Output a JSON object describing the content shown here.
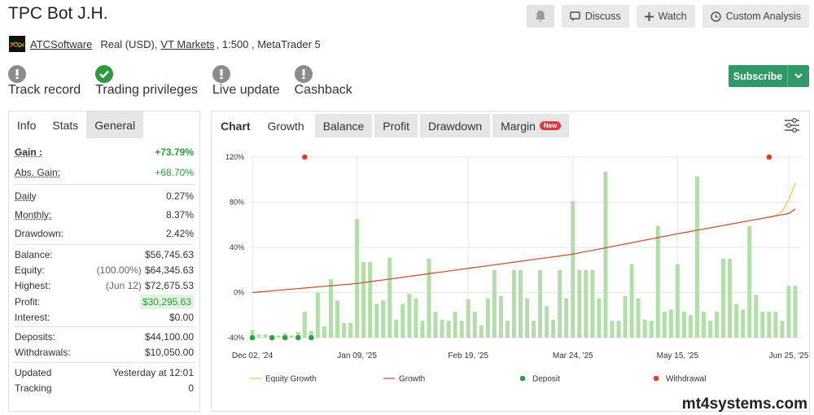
{
  "header": {
    "title": "TPC Bot J.H.",
    "buttons": [
      "Discuss",
      "Watch",
      "Custom Analysis"
    ]
  },
  "account": {
    "author": "ATCSoftware",
    "prefix": "Real (USD),",
    "broker": "VT Markets",
    "suffix": ", 1:500 , MetaTrader 5"
  },
  "badges": [
    {
      "label": "Track record",
      "ok": false
    },
    {
      "label": "Trading privileges",
      "ok": true
    },
    {
      "label": "Live update",
      "ok": false
    },
    {
      "label": "Cashback",
      "ok": false
    }
  ],
  "subscribe": "Subscribe",
  "stats": {
    "tabs": [
      "Info",
      "Stats",
      "General"
    ],
    "groups": [
      [
        {
          "label": "Gain :",
          "value": "+73.79%",
          "underline": true,
          "bold": true,
          "color": "#2e9a3e"
        },
        {
          "label": "Abs. Gain:",
          "value": "+68.70%",
          "underline": true,
          "color": "#2e9a3e"
        }
      ],
      [
        {
          "label": "Daily",
          "value": "0.27%",
          "underline": true
        },
        {
          "label": "Monthly:",
          "value": "8.37%",
          "underline": true
        },
        {
          "label": "Drawdown:",
          "value": "2.42%"
        }
      ],
      [
        {
          "label": "Balance:",
          "value": "$56,745.63"
        },
        {
          "label": "Equity:",
          "note": "(100.00%)",
          "value": "$64,345.63"
        },
        {
          "label": "Highest:",
          "note": "(Jun 12)",
          "value": "$72,675.53"
        },
        {
          "label": "Profit:",
          "value": "$30,295.63",
          "color": "#2e9a3e",
          "highlight": "#e2f3e2"
        },
        {
          "label": "Interest:",
          "value": "$0.00"
        }
      ],
      [
        {
          "label": "Deposits:",
          "value": "$44,100.00"
        },
        {
          "label": "Withdrawals:",
          "value": "$10,050.00"
        }
      ],
      [
        {
          "label": "Updated",
          "value": "Yesterday at 12:01"
        },
        {
          "label": "Tracking",
          "value": "0"
        }
      ]
    ]
  },
  "chart_tabs": {
    "tabs": [
      "Chart",
      "Growth",
      "Balance",
      "Profit",
      "Drawdown",
      "Margin"
    ],
    "badge": "New"
  },
  "watermark": "mt4systems.com",
  "chart_data": {
    "type": "combo",
    "ylim": [
      -40,
      120
    ],
    "yticks": [
      {
        "value": -40,
        "label": "-40%"
      },
      {
        "value": 0,
        "label": "0%"
      },
      {
        "value": 40,
        "label": "40%"
      },
      {
        "value": 80,
        "label": "80%"
      },
      {
        "value": 120,
        "label": "120%"
      }
    ],
    "grid": true,
    "categories": [
      "Dec 02, '24",
      null,
      null,
      null,
      null,
      null,
      null,
      null,
      null,
      null,
      null,
      null,
      null,
      null,
      null,
      null,
      "Jan 09, '25",
      null,
      null,
      null,
      null,
      null,
      null,
      null,
      null,
      null,
      null,
      null,
      null,
      null,
      null,
      null,
      null,
      "Feb 19, '25",
      null,
      null,
      null,
      null,
      null,
      null,
      null,
      null,
      null,
      null,
      null,
      null,
      null,
      null,
      null,
      "Mar 24, '25",
      null,
      null,
      null,
      null,
      null,
      null,
      null,
      null,
      null,
      null,
      null,
      null,
      null,
      null,
      null,
      "May 15, '25",
      null,
      null,
      null,
      null,
      null,
      null,
      null,
      null,
      null,
      null,
      null,
      null,
      null,
      null,
      null,
      null,
      "Jun 25, '25",
      null
    ],
    "bars": {
      "color": "#b3deab",
      "values": [
        -33,
        -37,
        -37,
        -38,
        -38,
        -36,
        -38,
        -35,
        -17,
        -34,
        0,
        -30,
        12,
        -7,
        -27,
        -27,
        65,
        27,
        27,
        -10,
        -7,
        31,
        -24,
        -10,
        -1,
        -5,
        -25,
        30,
        -17,
        -24,
        -25,
        -17,
        -25,
        -6,
        -17,
        -29,
        -5,
        20,
        -3,
        -25,
        20,
        20,
        -5,
        -25,
        20,
        -12,
        -24,
        20,
        -5,
        81,
        20,
        20,
        20,
        -5,
        107,
        -25,
        -25,
        -3,
        25,
        -5,
        -24,
        -25,
        59,
        -17,
        -15,
        25,
        -17,
        -20,
        103,
        -17,
        -25,
        -17,
        30,
        30,
        -10,
        -15,
        59,
        -2,
        -17,
        -17,
        -17,
        -25,
        6,
        6
      ]
    },
    "series": [
      {
        "name": "Equity Growth",
        "kind": "line",
        "color": "#e8c84a",
        "values": [
          null,
          null,
          null,
          null,
          null,
          null,
          null,
          null,
          null,
          null,
          null,
          null,
          null,
          null,
          null,
          null,
          null,
          null,
          null,
          null,
          null,
          null,
          null,
          null,
          null,
          null,
          null,
          null,
          null,
          null,
          null,
          null,
          null,
          null,
          null,
          null,
          null,
          null,
          null,
          null,
          null,
          null,
          null,
          null,
          null,
          null,
          null,
          null,
          null,
          null,
          null,
          null,
          null,
          null,
          null,
          null,
          null,
          null,
          null,
          null,
          null,
          null,
          null,
          null,
          null,
          null,
          null,
          null,
          null,
          null,
          null,
          null,
          null,
          null,
          null,
          null,
          null,
          null,
          null,
          66.8,
          68,
          72,
          82,
          97
        ]
      },
      {
        "name": "Growth",
        "kind": "line",
        "color": "#c4563a",
        "values": [
          0,
          0.5,
          1,
          1.5,
          2,
          2.5,
          3,
          3.5,
          4,
          4.5,
          5,
          5.5,
          6,
          6.5,
          7,
          7.5,
          8,
          8.8,
          9.6,
          10.4,
          11.2,
          11.9,
          12.7,
          13.5,
          14.3,
          15.1,
          15.9,
          16.7,
          17.5,
          18.2,
          19,
          19.8,
          20.6,
          21.4,
          22.2,
          23,
          23.8,
          24.5,
          25.3,
          26.1,
          26.9,
          27.7,
          28.5,
          29.3,
          30.1,
          30.8,
          31.6,
          32.4,
          33.2,
          34,
          35.1,
          36.3,
          37.4,
          38.5,
          39.6,
          40.8,
          41.9,
          43,
          44.1,
          45.3,
          46.4,
          47.5,
          48.6,
          49.8,
          50.9,
          52,
          53.1,
          54.1,
          55.2,
          56.2,
          57.3,
          58.4,
          59.4,
          60.5,
          61.5,
          62.6,
          63.6,
          64.7,
          65.8,
          66.8,
          67.9,
          68.9,
          70,
          74
        ]
      },
      {
        "name": "Deposit",
        "kind": "dot",
        "color": "#2ea043",
        "values": [
          -40,
          null,
          null,
          -40,
          null,
          -40,
          null,
          -40,
          null,
          -40,
          null,
          null,
          null,
          null,
          null,
          null,
          null,
          null,
          null,
          null,
          null,
          null,
          null,
          null,
          null,
          null,
          null,
          null,
          null,
          null,
          null,
          null,
          null,
          null,
          null,
          null,
          null,
          null,
          null,
          null,
          null,
          null,
          null,
          null,
          null,
          null,
          null,
          null,
          null,
          null,
          null,
          null,
          null,
          null,
          null,
          null,
          null,
          null,
          null,
          null,
          null,
          null,
          null,
          null,
          null,
          null,
          null,
          null,
          null,
          null,
          null,
          null,
          null,
          null,
          null,
          null,
          null,
          null,
          null,
          null,
          null,
          null,
          null,
          null
        ]
      },
      {
        "name": "Withdrawal",
        "kind": "dot",
        "color": "#d9412f",
        "values": [
          null,
          null,
          null,
          null,
          null,
          null,
          null,
          null,
          120,
          null,
          null,
          null,
          null,
          null,
          null,
          null,
          null,
          null,
          null,
          null,
          null,
          null,
          null,
          null,
          null,
          null,
          null,
          null,
          null,
          null,
          null,
          null,
          null,
          null,
          null,
          null,
          null,
          null,
          null,
          null,
          null,
          null,
          null,
          null,
          null,
          null,
          null,
          null,
          null,
          null,
          null,
          null,
          null,
          null,
          null,
          null,
          null,
          null,
          null,
          null,
          null,
          null,
          null,
          null,
          null,
          null,
          null,
          null,
          null,
          null,
          null,
          null,
          null,
          null,
          null,
          null,
          null,
          null,
          null,
          120,
          null,
          null,
          null,
          null
        ]
      }
    ]
  }
}
